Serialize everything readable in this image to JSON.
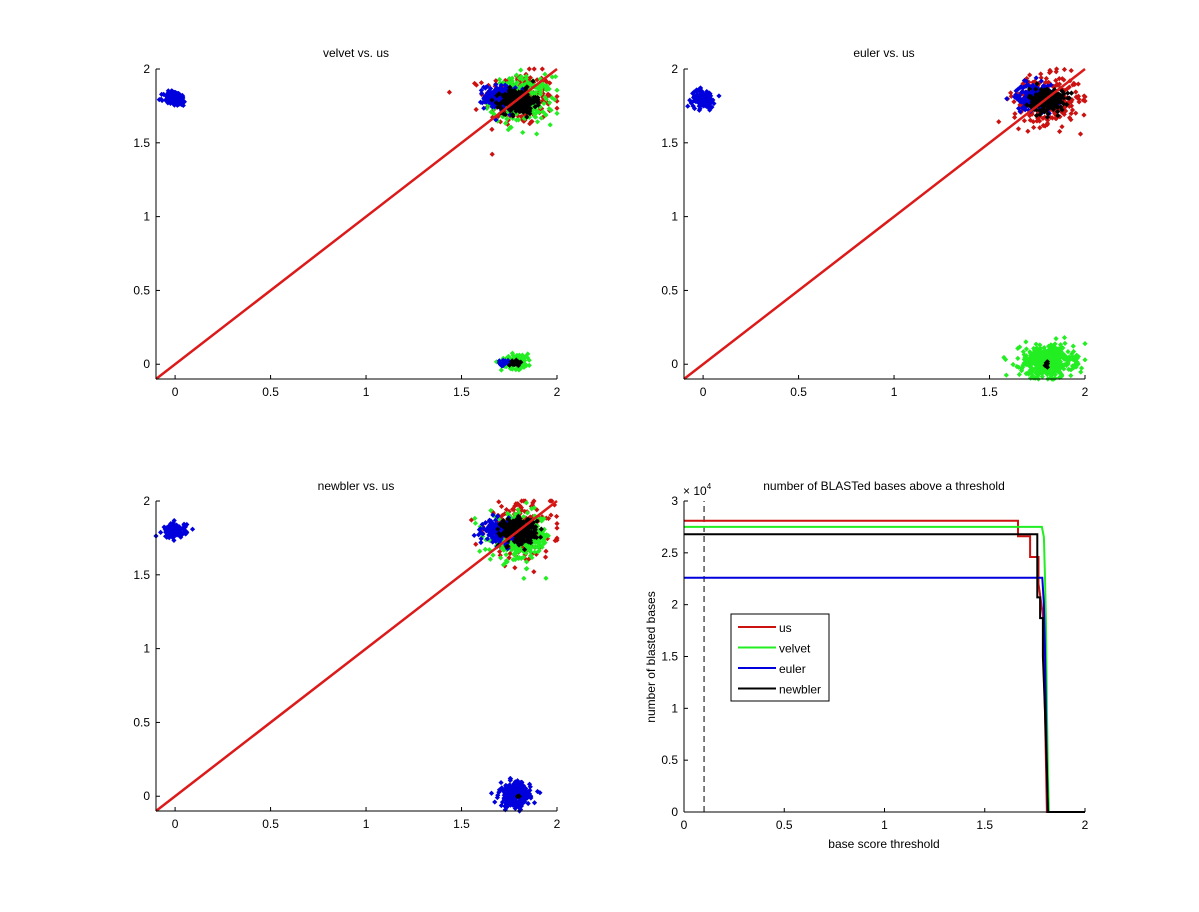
{
  "figure": {
    "colors": {
      "us": "#cc1111",
      "us_diag": "#dd1a1a",
      "velvet": "#22ee22",
      "euler": "#0000dd",
      "newbler": "#000000",
      "axis": "#000000"
    }
  },
  "chart_data": [
    {
      "id": "velvet-vs-us",
      "type": "scatter",
      "title": "velvet vs. us",
      "xlabel": "",
      "ylabel": "",
      "xlim": [
        -0.1,
        2
      ],
      "ylim": [
        -0.1,
        2
      ],
      "xticks": [
        "0",
        "0.5",
        "1",
        "1.5",
        "2"
      ],
      "xtick_values": [
        0,
        0.5,
        1,
        1.5,
        2
      ],
      "yticks": [
        "0",
        "0.5",
        "1",
        "1.5",
        "2"
      ],
      "ytick_values": [
        0,
        0.5,
        1,
        1.5,
        2
      ],
      "diagonal": {
        "from": [
          -0.1,
          -0.1
        ],
        "to": [
          2,
          2
        ],
        "color": "us_diag"
      },
      "clusters": [
        {
          "series": "us",
          "cx": 1.8,
          "cy": 1.8,
          "sx": 0.09,
          "sy": 0.09,
          "n": 260
        },
        {
          "series": "velvet",
          "cx": 1.82,
          "cy": 1.79,
          "sx": 0.08,
          "sy": 0.08,
          "n": 260
        },
        {
          "series": "euler",
          "cx": 1.7,
          "cy": 1.81,
          "sx": 0.04,
          "sy": 0.04,
          "n": 200
        },
        {
          "series": "newbler",
          "cx": 1.8,
          "cy": 1.78,
          "sx": 0.045,
          "sy": 0.04,
          "n": 260
        },
        {
          "series": "euler",
          "cx": 0.0,
          "cy": 1.8,
          "sx": 0.03,
          "sy": 0.025,
          "n": 120
        },
        {
          "series": "velvet",
          "cx": 1.79,
          "cy": 0.02,
          "sx": 0.04,
          "sy": 0.025,
          "n": 120
        },
        {
          "series": "euler",
          "cx": 1.72,
          "cy": 0.01,
          "sx": 0.012,
          "sy": 0.01,
          "n": 25
        },
        {
          "series": "newbler",
          "cx": 1.79,
          "cy": 0.01,
          "sx": 0.012,
          "sy": 0.008,
          "n": 30
        }
      ]
    },
    {
      "id": "euler-vs-us",
      "type": "scatter",
      "title": "euler vs. us",
      "xlabel": "",
      "ylabel": "",
      "xlim": [
        -0.1,
        2
      ],
      "ylim": [
        -0.1,
        2
      ],
      "xticks": [
        "0",
        "0.5",
        "1",
        "1.5",
        "2"
      ],
      "xtick_values": [
        0,
        0.5,
        1,
        1.5,
        2
      ],
      "yticks": [
        "0",
        "0.5",
        "1",
        "1.5",
        "2"
      ],
      "ytick_values": [
        0,
        0.5,
        1,
        1.5,
        2
      ],
      "diagonal": {
        "from": [
          -0.1,
          -0.1
        ],
        "to": [
          2,
          2
        ],
        "color": "us_diag"
      },
      "clusters": [
        {
          "series": "us",
          "cx": 1.8,
          "cy": 1.79,
          "sx": 0.085,
          "sy": 0.08,
          "n": 320
        },
        {
          "series": "euler",
          "cx": 1.74,
          "cy": 1.81,
          "sx": 0.05,
          "sy": 0.045,
          "n": 220
        },
        {
          "series": "newbler",
          "cx": 1.8,
          "cy": 1.79,
          "sx": 0.045,
          "sy": 0.04,
          "n": 260
        },
        {
          "series": "euler",
          "cx": 0.0,
          "cy": 1.8,
          "sx": 0.03,
          "sy": 0.03,
          "n": 120
        },
        {
          "series": "velvet",
          "cx": 1.8,
          "cy": 0.02,
          "sx": 0.07,
          "sy": 0.055,
          "n": 420
        },
        {
          "series": "newbler",
          "cx": 1.8,
          "cy": 0.0,
          "sx": 0.004,
          "sy": 0.01,
          "n": 8
        }
      ]
    },
    {
      "id": "newbler-vs-us",
      "type": "scatter",
      "title": "newbler vs. us",
      "xlabel": "",
      "ylabel": "",
      "xlim": [
        -0.1,
        2
      ],
      "ylim": [
        -0.1,
        2
      ],
      "xticks": [
        "0",
        "0.5",
        "1",
        "1.5",
        "2"
      ],
      "xtick_values": [
        0,
        0.5,
        1,
        1.5,
        2
      ],
      "yticks": [
        "0",
        "0.5",
        "1",
        "1.5",
        "2"
      ],
      "ytick_values": [
        0,
        0.5,
        1,
        1.5,
        2
      ],
      "diagonal": {
        "from": [
          -0.1,
          -0.1
        ],
        "to": [
          2,
          2
        ],
        "color": "us_diag"
      },
      "clusters": [
        {
          "series": "us",
          "cx": 1.8,
          "cy": 1.8,
          "sx": 0.09,
          "sy": 0.09,
          "n": 260
        },
        {
          "series": "velvet",
          "cx": 1.81,
          "cy": 1.75,
          "sx": 0.08,
          "sy": 0.08,
          "n": 300
        },
        {
          "series": "euler",
          "cx": 1.7,
          "cy": 1.8,
          "sx": 0.04,
          "sy": 0.035,
          "n": 200
        },
        {
          "series": "newbler",
          "cx": 1.8,
          "cy": 1.8,
          "sx": 0.045,
          "sy": 0.04,
          "n": 260
        },
        {
          "series": "euler",
          "cx": 0.0,
          "cy": 1.8,
          "sx": 0.03,
          "sy": 0.025,
          "n": 120
        },
        {
          "series": "euler",
          "cx": 1.78,
          "cy": 0.01,
          "sx": 0.04,
          "sy": 0.04,
          "n": 260
        },
        {
          "series": "newbler",
          "cx": 1.8,
          "cy": 0.0,
          "sx": 0.003,
          "sy": 0.003,
          "n": 3
        }
      ]
    },
    {
      "id": "blasted-bases",
      "type": "line",
      "title": "number of BLASTed bases above a threshold",
      "xlabel": "base score threshold",
      "ylabel": "number of blasted bases",
      "y_multiplier": "× 10",
      "y_multiplier_exp": "4",
      "xlim": [
        0,
        2
      ],
      "ylim": [
        0,
        3
      ],
      "xticks": [
        "0",
        "0.5",
        "1",
        "1.5",
        "2"
      ],
      "xtick_values": [
        0,
        0.5,
        1,
        1.5,
        2
      ],
      "yticks": [
        "0",
        "0.5",
        "1",
        "1.5",
        "2",
        "2.5",
        "3"
      ],
      "ytick_values": [
        0,
        0.5,
        1,
        1.5,
        2,
        2.5,
        3
      ],
      "vline": {
        "x": 0.1,
        "style": "dashed"
      },
      "legend_position": "center-left",
      "series": [
        {
          "name": "us",
          "color": "us",
          "x": [
            0,
            1.666,
            1.666,
            1.726,
            1.726,
            1.768,
            1.768,
            1.79,
            1.8,
            1.81,
            1.82,
            2
          ],
          "y": [
            2.81,
            2.81,
            2.66,
            2.66,
            2.46,
            2.46,
            2.2,
            1.9,
            1.0,
            0.0,
            0.0,
            0.0
          ]
        },
        {
          "name": "velvet",
          "color": "velvet",
          "x": [
            0,
            1.785,
            1.795,
            1.8,
            1.805,
            1.81,
            1.815,
            1.82,
            2
          ],
          "y": [
            2.75,
            2.75,
            2.65,
            2.3,
            1.85,
            1.0,
            0.4,
            0.0,
            0.0
          ]
        },
        {
          "name": "euler",
          "color": "euler",
          "x": [
            0,
            1.787,
            1.795,
            1.8,
            1.805,
            1.81,
            1.815,
            2
          ],
          "y": [
            2.26,
            2.26,
            2.0,
            1.6,
            1.0,
            0.4,
            0.0,
            0.0
          ]
        },
        {
          "name": "newbler",
          "color": "newbler",
          "x": [
            0,
            1.762,
            1.762,
            1.776,
            1.776,
            1.79,
            1.79,
            1.8,
            1.81,
            1.815,
            2
          ],
          "y": [
            2.68,
            2.68,
            2.07,
            2.07,
            1.87,
            1.87,
            1.5,
            1.0,
            0.4,
            0.0,
            0.0
          ]
        }
      ]
    }
  ]
}
